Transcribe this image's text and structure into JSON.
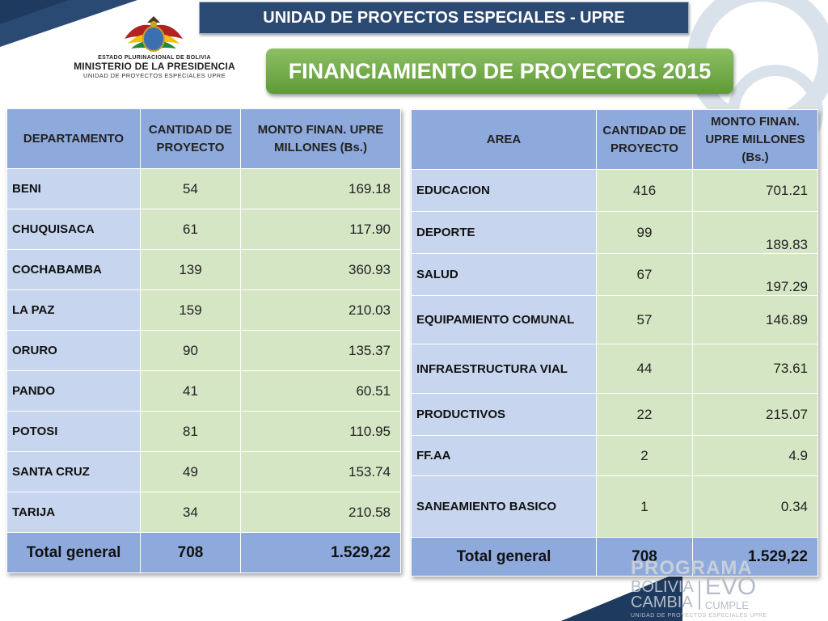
{
  "header": {
    "top_banner": "UNIDAD DE PROYECTOS ESPECIALES  - UPRE",
    "title": "FINANCIAMIENTO DE PROYECTOS 2015",
    "logo_line1": "ESTADO PLURINACIONAL DE BOLIVIA",
    "logo_line2": "MINISTERIO DE LA PRESIDENCIA",
    "logo_line3": "UNIDAD DE PROYECTOS ESPECIALES UPRE"
  },
  "table_departments": {
    "headers": [
      "DEPARTAMENTO",
      "CANTIDAD DE PROYECTO",
      "MONTO FINAN. UPRE MILLONES (Bs.)"
    ],
    "rows": [
      {
        "name": "BENI",
        "qty": "54",
        "amount": "169.18"
      },
      {
        "name": "CHUQUISACA",
        "qty": "61",
        "amount": "117.90"
      },
      {
        "name": "COCHABAMBA",
        "qty": "139",
        "amount": "360.93"
      },
      {
        "name": "LA PAZ",
        "qty": "159",
        "amount": "210.03"
      },
      {
        "name": "ORURO",
        "qty": "90",
        "amount": "135.37"
      },
      {
        "name": "PANDO",
        "qty": "41",
        "amount": "60.51"
      },
      {
        "name": "POTOSI",
        "qty": "81",
        "amount": "110.95"
      },
      {
        "name": "SANTA CRUZ",
        "qty": "49",
        "amount": "153.74"
      },
      {
        "name": "TARIJA",
        "qty": "34",
        "amount": "210.58"
      }
    ],
    "total": {
      "label": "Total general",
      "qty": "708",
      "amount": "1.529,22"
    }
  },
  "table_areas": {
    "headers": [
      "AREA",
      "CANTIDAD DE PROYECTO",
      "MONTO FINAN. UPRE MILLONES (Bs.)"
    ],
    "rows": [
      {
        "name": "EDUCACION",
        "qty": "416",
        "amount": "701.21"
      },
      {
        "name": "DEPORTE",
        "qty": "99",
        "amount": "189.83"
      },
      {
        "name": "SALUD",
        "qty": "67",
        "amount": "197.29"
      },
      {
        "name": "EQUIPAMIENTO COMUNAL",
        "qty": "57",
        "amount": "146.89"
      },
      {
        "name": "INFRAESTRUCTURA VIAL",
        "qty": "44",
        "amount": "73.61"
      },
      {
        "name": "PRODUCTIVOS",
        "qty": "22",
        "amount": "215.07"
      },
      {
        "name": "FF.AA",
        "qty": "2",
        "amount": "4.9"
      },
      {
        "name": "SANEAMIENTO BASICO",
        "qty": "1",
        "amount": "0.34"
      }
    ],
    "total": {
      "label": "Total general",
      "qty": "708",
      "amount": "1.529,22"
    }
  },
  "watermark": {
    "line1": "PROGRAMA",
    "left1": "BOLIVIA",
    "left2": "CAMBIA",
    "right1": "EVO",
    "right2": "CUMPLE",
    "sub": "UNIDAD DE PROYECTOS ESPECIALES UPRE"
  },
  "colors": {
    "navy": "#2b4a73",
    "green_banner": "#6fab45",
    "header_blue": "#8eaadc",
    "name_cell_blue": "#c7d6ee",
    "value_cell_green": "#d5e6c4"
  }
}
